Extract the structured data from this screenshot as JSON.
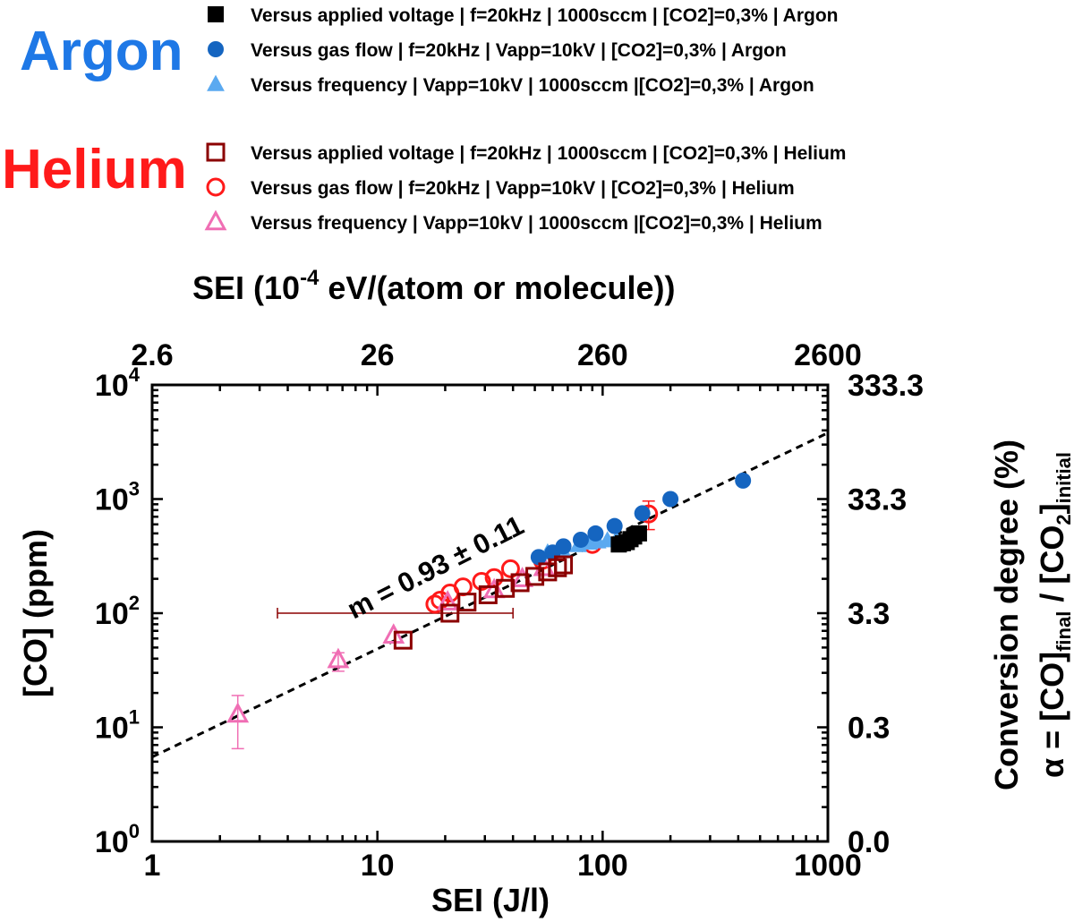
{
  "labels": {
    "argon": "Argon",
    "helium": "Helium"
  },
  "legend": [
    {
      "marker": "filled-square",
      "color": "#000000",
      "text": "Versus applied voltage | f=20kHz | 1000sccm | [CO2]=0,3% | Argon"
    },
    {
      "marker": "filled-circle",
      "color": "#1565C0",
      "text": "Versus gas flow | f=20kHz | Vapp=10kV | [CO2]=0,3% | Argon"
    },
    {
      "marker": "filled-triangle",
      "color": "#5AA9F0",
      "text": "Versus frequency  | Vapp=10kV | 1000sccm |[CO2]=0,3% | Argon"
    },
    {
      "marker": "open-square",
      "color": "#8B0000",
      "text": "Versus applied voltage | f=20kHz | 1000sccm | [CO2]=0,3% | Helium"
    },
    {
      "marker": "open-circle",
      "color": "#FF1A1A",
      "text": "Versus gas flow | f=20kHz | Vapp=10kV | [CO2]=0,3% | Helium"
    },
    {
      "marker": "open-triangle",
      "color": "#F06EB4",
      "text": "Versus frequency  | Vapp=10kV | 1000sccm |[CO2]=0,3% | Helium"
    }
  ],
  "chart_data": {
    "type": "scatter",
    "xscale": "log",
    "yscale": "log",
    "xlim": [
      1,
      1000
    ],
    "ylim": [
      1,
      10000
    ],
    "xlabel": "SEI (J/l)",
    "ylabel": "[CO] (ppm)",
    "top_axis": {
      "label_main": "SEI (10",
      "label_exp": "-4",
      "label_rest": " eV/(atom or molecule))",
      "ticks": [
        {
          "x": 1,
          "label": "2.6"
        },
        {
          "x": 10,
          "label": "26"
        },
        {
          "x": 100,
          "label": "260"
        },
        {
          "x": 1000,
          "label": "2600"
        }
      ]
    },
    "right_axis": {
      "label_line1": "Conversion degree (%)",
      "label_line2_prefix": "α = [CO]",
      "label_line2_sub1": "final",
      "label_line2_mid": " / [CO",
      "label_line2_sub2": "2",
      "label_line2_close": "]",
      "label_line2_sub3": "initial",
      "ticks": [
        {
          "y": 1,
          "label": "0.0"
        },
        {
          "y": 10,
          "label": "0.3"
        },
        {
          "y": 100,
          "label": "3.3"
        },
        {
          "y": 1000,
          "label": "33.3"
        },
        {
          "y": 10000,
          "label": "333.3"
        }
      ]
    },
    "x_ticks": [
      {
        "x": 1,
        "label": "1"
      },
      {
        "x": 10,
        "label": "10"
      },
      {
        "x": 100,
        "label": "100"
      },
      {
        "x": 1000,
        "label": "1000"
      }
    ],
    "y_ticks": [
      {
        "y": 1,
        "base": "10",
        "exp": "0"
      },
      {
        "y": 10,
        "base": "10",
        "exp": "1"
      },
      {
        "y": 100,
        "base": "10",
        "exp": "2"
      },
      {
        "y": 1000,
        "base": "10",
        "exp": "3"
      },
      {
        "y": 10000,
        "base": "10",
        "exp": "4"
      }
    ],
    "fit": {
      "slope": 0.93,
      "text": "m = 0.93 ± 0.11",
      "y_at_x1": 5.5,
      "y_at_x1000": 3800
    },
    "series": [
      {
        "name": "Versus applied voltage | Argon",
        "marker": "filled-square",
        "color": "#000000",
        "points": [
          [
            118,
            400
          ],
          [
            123,
            410
          ],
          [
            128,
            420
          ],
          [
            133,
            445
          ],
          [
            138,
            470
          ],
          [
            145,
            500
          ]
        ]
      },
      {
        "name": "Versus gas flow | Argon",
        "marker": "filled-circle",
        "color": "#1565C0",
        "points": [
          [
            52,
            310
          ],
          [
            60,
            340
          ],
          [
            67,
            385
          ],
          [
            80,
            440
          ],
          [
            93,
            500
          ],
          [
            113,
            580
          ],
          [
            150,
            750
          ],
          [
            200,
            1000
          ],
          [
            420,
            1450
          ]
        ]
      },
      {
        "name": "Versus frequency | Argon",
        "marker": "filled-triangle",
        "color": "#5AA9F0",
        "points": [
          [
            57,
            340
          ],
          [
            66,
            365
          ],
          [
            78,
            395
          ],
          [
            87,
            415
          ],
          [
            95,
            425
          ],
          [
            105,
            435
          ],
          [
            115,
            440
          ]
        ]
      },
      {
        "name": "Versus applied voltage | Helium",
        "marker": "open-square",
        "color": "#8B0000",
        "points": [
          [
            13,
            58
          ],
          [
            21,
            100
          ],
          [
            25,
            125
          ],
          [
            31,
            145
          ],
          [
            37,
            165
          ],
          [
            43,
            185
          ],
          [
            50,
            210
          ],
          [
            57,
            230
          ],
          [
            63,
            250
          ],
          [
            67,
            265
          ]
        ]
      },
      {
        "name": "Versus gas flow | Helium",
        "marker": "open-circle",
        "color": "#FF1A1A",
        "points": [
          [
            18,
            120
          ],
          [
            19,
            130
          ],
          [
            21,
            150
          ],
          [
            24,
            170
          ],
          [
            29,
            190
          ],
          [
            33,
            205
          ],
          [
            39,
            245
          ],
          [
            54,
            290
          ],
          [
            90,
            400
          ],
          [
            160,
            740
          ]
        ]
      },
      {
        "name": "Versus frequency | Helium",
        "marker": "open-triangle",
        "color": "#F06EB4",
        "points": [
          [
            2.4,
            13
          ],
          [
            6.7,
            39
          ],
          [
            11.8,
            64
          ],
          [
            20.5,
            125
          ],
          [
            33,
            160
          ],
          [
            44,
            200
          ],
          [
            55,
            250
          ]
        ]
      }
    ],
    "error_bars": [
      {
        "series": "Versus frequency | Helium",
        "x": 2.4,
        "y": 13,
        "y_low": 6.5,
        "y_high": 19
      },
      {
        "series": "Versus frequency | Helium",
        "x": 6.7,
        "y": 39,
        "y_low": 31,
        "y_high": 45
      },
      {
        "series": "Versus applied voltage | Helium",
        "x": 21,
        "y": 100,
        "x_low": 3.6,
        "x_high": 40
      },
      {
        "series": "Versus gas flow | Helium",
        "x": 160,
        "y": 740,
        "y_low": 540,
        "y_high": 960
      }
    ]
  }
}
